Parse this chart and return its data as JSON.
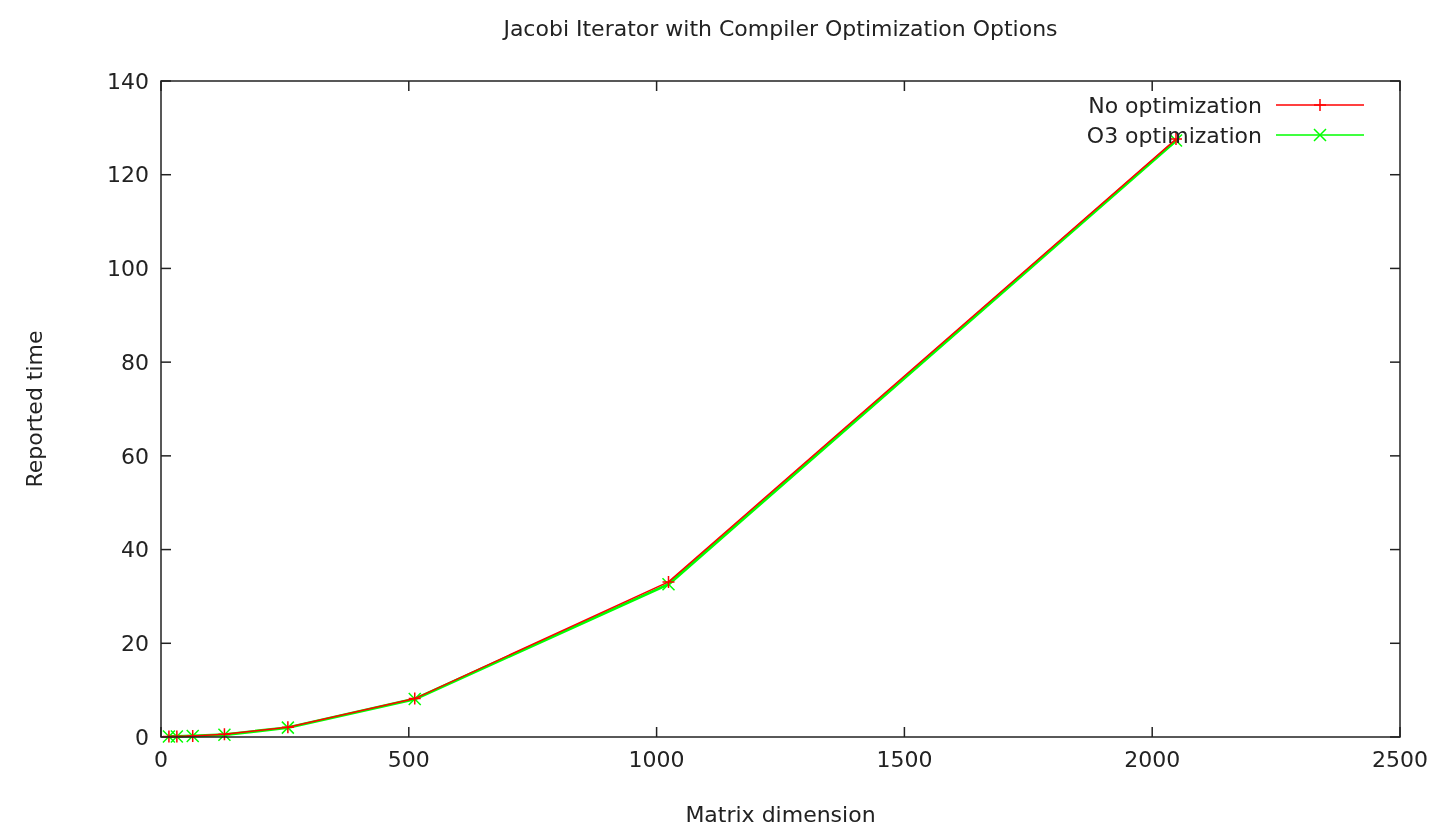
{
  "chart_data": {
    "type": "line",
    "title": "Jacobi Iterator with Compiler Optimization Options",
    "xlabel": "Matrix dimension",
    "ylabel": "Reported time",
    "x": [
      16,
      32,
      64,
      128,
      256,
      512,
      1024,
      2048
    ],
    "series": [
      {
        "name": "No optimization",
        "color": "#ff0000",
        "marker": "cross",
        "values": [
          0.1,
          0.1,
          0.2,
          0.6,
          2.1,
          8.2,
          33.1,
          127.6
        ]
      },
      {
        "name": "O3 optimization",
        "color": "#00ff00",
        "marker": "cross",
        "values": [
          0.1,
          0.1,
          0.2,
          0.5,
          2.0,
          8.1,
          32.6,
          127.3
        ]
      }
    ],
    "xlim": [
      0,
      2500
    ],
    "xticks": [
      0,
      500,
      1000,
      1500,
      2000,
      2500
    ],
    "ylim": [
      0,
      140
    ],
    "yticks": [
      0,
      20,
      40,
      60,
      80,
      100,
      120,
      140
    ],
    "grid": false,
    "legend": "top right",
    "line_style": "solid"
  }
}
